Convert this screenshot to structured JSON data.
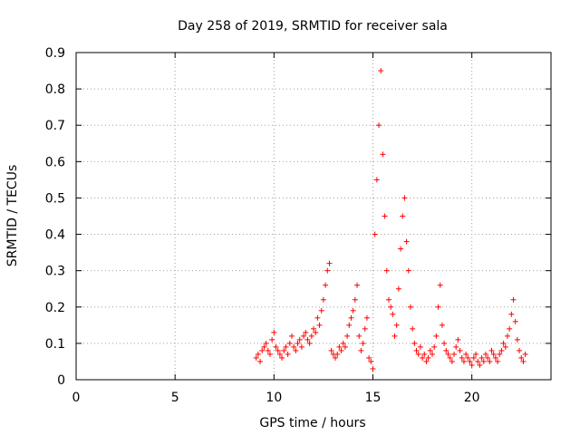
{
  "chart_data": {
    "type": "scatter",
    "title": "Day 258 of 2019, SRMTID for receiver sala",
    "xlabel": "GPS time / hours",
    "ylabel": "SRMTID / TECUs",
    "xlim": [
      0,
      24
    ],
    "ylim": [
      0,
      0.9
    ],
    "x_ticks": [
      0,
      5,
      10,
      15,
      20
    ],
    "x_tick_labels": [
      "0",
      "5",
      "10",
      "15",
      "20"
    ],
    "y_ticks": [
      0,
      0.1,
      0.2,
      0.3,
      0.4,
      0.5,
      0.6,
      0.7,
      0.8,
      0.9
    ],
    "y_tick_labels": [
      "0",
      "0.1",
      "0.2",
      "0.3",
      "0.4",
      "0.5",
      "0.6",
      "0.7",
      "0.8",
      "0.9"
    ],
    "grid": true,
    "marker": "+",
    "color": "#ff0000",
    "series": [
      {
        "name": "SRMTID",
        "x": [
          9.1,
          9.2,
          9.3,
          9.4,
          9.5,
          9.6,
          9.7,
          9.8,
          9.9,
          10.0,
          10.1,
          10.2,
          10.3,
          10.4,
          10.5,
          10.6,
          10.7,
          10.8,
          10.9,
          11.0,
          11.1,
          11.2,
          11.3,
          11.4,
          11.5,
          11.6,
          11.7,
          11.8,
          11.9,
          12.0,
          12.1,
          12.2,
          12.3,
          12.4,
          12.5,
          12.6,
          12.7,
          12.8,
          12.9,
          13.0,
          13.1,
          13.2,
          13.3,
          13.4,
          13.5,
          13.6,
          13.7,
          13.8,
          13.9,
          14.0,
          14.1,
          14.2,
          14.3,
          14.4,
          14.5,
          14.6,
          14.7,
          14.8,
          14.9,
          15.0,
          15.1,
          15.2,
          15.3,
          15.4,
          15.5,
          15.6,
          15.7,
          15.8,
          15.9,
          16.0,
          16.1,
          16.2,
          16.3,
          16.4,
          16.5,
          16.6,
          16.7,
          16.8,
          16.9,
          17.0,
          17.1,
          17.2,
          17.3,
          17.4,
          17.5,
          17.6,
          17.7,
          17.8,
          17.9,
          18.0,
          18.1,
          18.2,
          18.3,
          18.4,
          18.5,
          18.6,
          18.7,
          18.8,
          18.9,
          19.0,
          19.1,
          19.2,
          19.3,
          19.4,
          19.5,
          19.6,
          19.7,
          19.8,
          19.9,
          20.0,
          20.1,
          20.2,
          20.3,
          20.4,
          20.5,
          20.6,
          20.7,
          20.8,
          20.9,
          21.0,
          21.1,
          21.2,
          21.3,
          21.4,
          21.5,
          21.6,
          21.7,
          21.8,
          21.9,
          22.0,
          22.1,
          22.2,
          22.3,
          22.4,
          22.5,
          22.6,
          22.7
        ],
        "y": [
          0.06,
          0.07,
          0.05,
          0.08,
          0.09,
          0.1,
          0.08,
          0.07,
          0.11,
          0.13,
          0.09,
          0.08,
          0.07,
          0.06,
          0.08,
          0.09,
          0.07,
          0.1,
          0.12,
          0.09,
          0.08,
          0.1,
          0.11,
          0.09,
          0.12,
          0.13,
          0.11,
          0.1,
          0.12,
          0.14,
          0.13,
          0.17,
          0.15,
          0.19,
          0.22,
          0.26,
          0.3,
          0.32,
          0.08,
          0.07,
          0.06,
          0.07,
          0.09,
          0.08,
          0.1,
          0.09,
          0.12,
          0.15,
          0.17,
          0.19,
          0.22,
          0.26,
          0.12,
          0.08,
          0.1,
          0.14,
          0.17,
          0.06,
          0.05,
          0.03,
          0.4,
          0.55,
          0.7,
          0.85,
          0.62,
          0.45,
          0.3,
          0.22,
          0.2,
          0.18,
          0.12,
          0.15,
          0.25,
          0.36,
          0.45,
          0.5,
          0.38,
          0.3,
          0.2,
          0.14,
          0.1,
          0.08,
          0.07,
          0.09,
          0.06,
          0.07,
          0.05,
          0.06,
          0.08,
          0.07,
          0.09,
          0.12,
          0.2,
          0.26,
          0.15,
          0.1,
          0.08,
          0.07,
          0.06,
          0.05,
          0.07,
          0.09,
          0.11,
          0.08,
          0.06,
          0.05,
          0.07,
          0.06,
          0.05,
          0.04,
          0.06,
          0.07,
          0.05,
          0.04,
          0.06,
          0.05,
          0.07,
          0.06,
          0.05,
          0.08,
          0.07,
          0.06,
          0.05,
          0.07,
          0.08,
          0.1,
          0.09,
          0.12,
          0.14,
          0.18,
          0.22,
          0.16,
          0.11,
          0.08,
          0.06,
          0.05,
          0.07
        ]
      }
    ]
  }
}
